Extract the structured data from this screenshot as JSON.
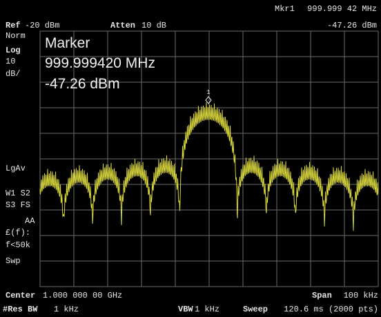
{
  "marker_readout": {
    "label": "Mkr1",
    "frequency": "999.999 42 MHz",
    "amplitude": "-47.26 dBm"
  },
  "header": {
    "ref_label": "Ref",
    "ref_value": "-20 dBm",
    "atten_label": "Atten",
    "atten_value": "10 dB"
  },
  "side_labels": [
    "Norm",
    "Log",
    "10",
    "dB/",
    "LgAv",
    "W1  S2",
    "S3  FS",
    "AA",
    "£(f):",
    "f<50k",
    "Swp"
  ],
  "marker_box": {
    "title": "Marker",
    "frequency": "999.999420 MHz",
    "amplitude": "-47.26 dBm",
    "marker_number": "1"
  },
  "footer": {
    "center_label": "Center",
    "center_value": "1.000 000 00 GHz",
    "span_label": "Span",
    "span_value": "100 kHz",
    "rbw_label": "#Res BW",
    "rbw_value": "1 kHz",
    "vbw_label": "VBW",
    "vbw_value": "1 kHz",
    "sweep_label": "Sweep",
    "sweep_value": "120.6 ms (2000 pts)"
  }
}
